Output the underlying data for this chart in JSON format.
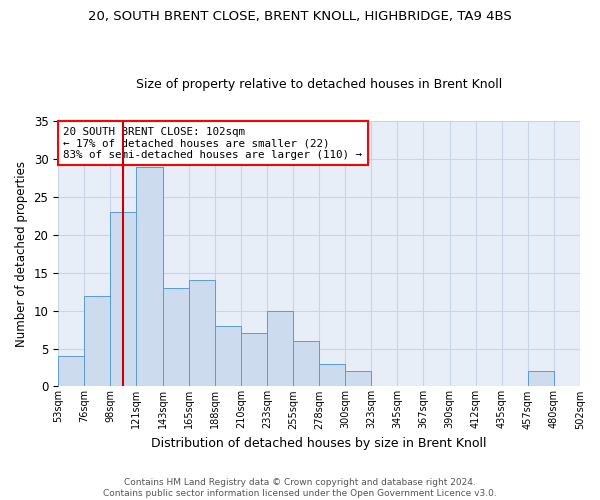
{
  "title": "20, SOUTH BRENT CLOSE, BRENT KNOLL, HIGHBRIDGE, TA9 4BS",
  "subtitle": "Size of property relative to detached houses in Brent Knoll",
  "xlabel": "Distribution of detached houses by size in Brent Knoll",
  "ylabel": "Number of detached properties",
  "bar_values": [
    4,
    12,
    23,
    29,
    13,
    14,
    8,
    7,
    10,
    6,
    3,
    2,
    0,
    0,
    0,
    0,
    0,
    0,
    2,
    0
  ],
  "bin_edges": [
    "53sqm",
    "76sqm",
    "98sqm",
    "121sqm",
    "143sqm",
    "165sqm",
    "188sqm",
    "210sqm",
    "233sqm",
    "255sqm",
    "278sqm",
    "300sqm",
    "323sqm",
    "345sqm",
    "367sqm",
    "390sqm",
    "412sqm",
    "435sqm",
    "457sqm",
    "480sqm",
    "502sqm"
  ],
  "bar_color": "#ccdcee",
  "bar_edge_color": "#5b9bd5",
  "vline_position": 2.5,
  "annotation_text": "20 SOUTH BRENT CLOSE: 102sqm\n← 17% of detached houses are smaller (22)\n83% of semi-detached houses are larger (110) →",
  "annotation_box_color": "white",
  "annotation_box_edge": "red",
  "vline_color": "#cc0000",
  "ylim": [
    0,
    35
  ],
  "yticks": [
    0,
    5,
    10,
    15,
    20,
    25,
    30,
    35
  ],
  "grid_color": "#c8d4e8",
  "footer": "Contains HM Land Registry data © Crown copyright and database right 2024.\nContains public sector information licensed under the Open Government Licence v3.0.",
  "bg_color": "#e8eef8",
  "fig_bg_color": "white",
  "title_fontsize": 9.5,
  "subtitle_fontsize": 9
}
